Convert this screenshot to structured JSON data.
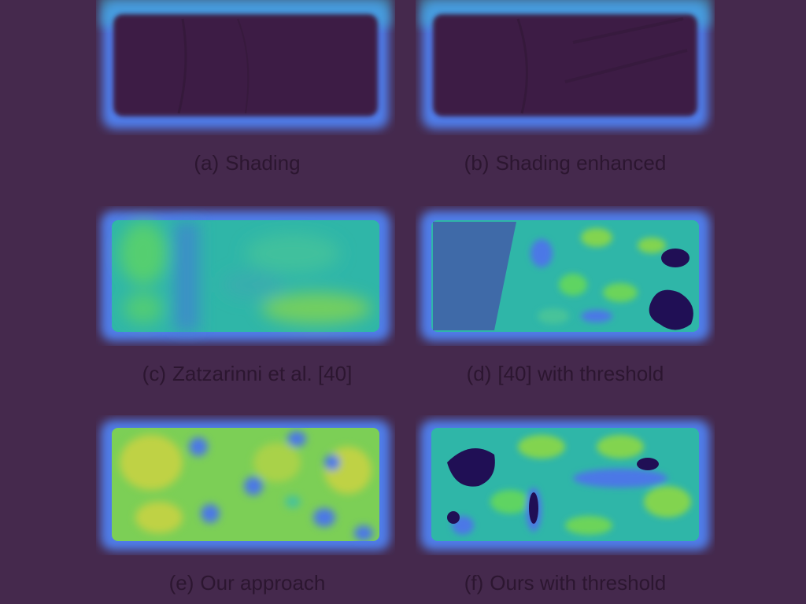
{
  "figure": {
    "panels": [
      {
        "label": "(a)",
        "caption": "Shading",
        "style": "shading"
      },
      {
        "label": "(b)",
        "caption": "Shading enhanced",
        "style": "shading"
      },
      {
        "label": "(c)",
        "caption": "Zatzarinni et al. [40]",
        "style": "smooth-map"
      },
      {
        "label": "(d)",
        "caption": "[40] with threshold",
        "style": "threshold-map"
      },
      {
        "label": "(e)",
        "caption": "Our approach",
        "style": "blob-map"
      },
      {
        "label": "(f)",
        "caption": "Ours with threshold",
        "style": "threshold-blob-map"
      }
    ],
    "colors": {
      "background": "#45294d",
      "dark": "#3c1f45",
      "blue": "#4b78e6",
      "teal": "#2fb6a8",
      "green": "#5ed462",
      "yellow": "#bfd244"
    }
  }
}
